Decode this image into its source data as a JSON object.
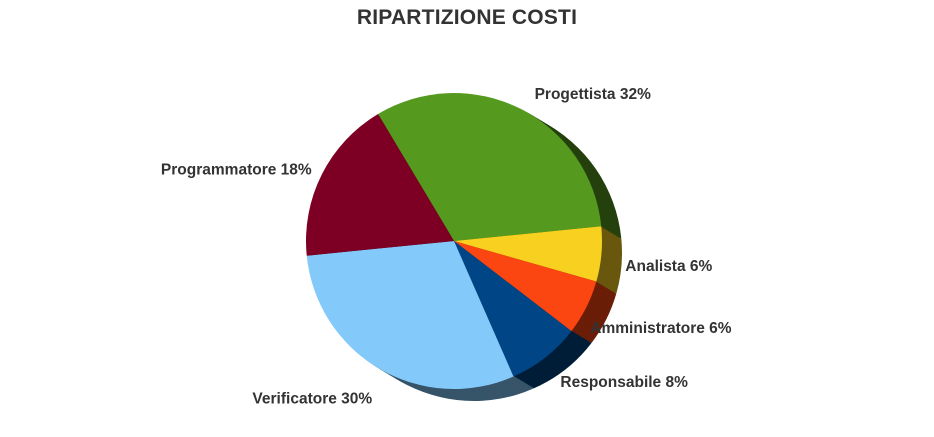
{
  "chart_data": {
    "type": "pie",
    "title": "RIPARTIZIONE COSTI",
    "slices": [
      {
        "label": "Progettista",
        "value": 32,
        "label_text": "Progettista 32%",
        "color": "#55991e"
      },
      {
        "label": "Analista",
        "value": 6,
        "label_text": "Analista 6%",
        "color": "#f7d020"
      },
      {
        "label": "Amministratore",
        "value": 6,
        "label_text": "Amministratore 6%",
        "color": "#fc4611"
      },
      {
        "label": "Responsabile",
        "value": 8,
        "label_text": "Responsabile 8%",
        "color": "#004586"
      },
      {
        "label": "Verificatore",
        "value": 30,
        "label_text": "Verificatore 30%",
        "color": "#83c9fa"
      },
      {
        "label": "Programmatore",
        "value": 18,
        "label_text": "Programmatore 18%",
        "color": "#7d0024"
      }
    ],
    "style": "3d"
  }
}
